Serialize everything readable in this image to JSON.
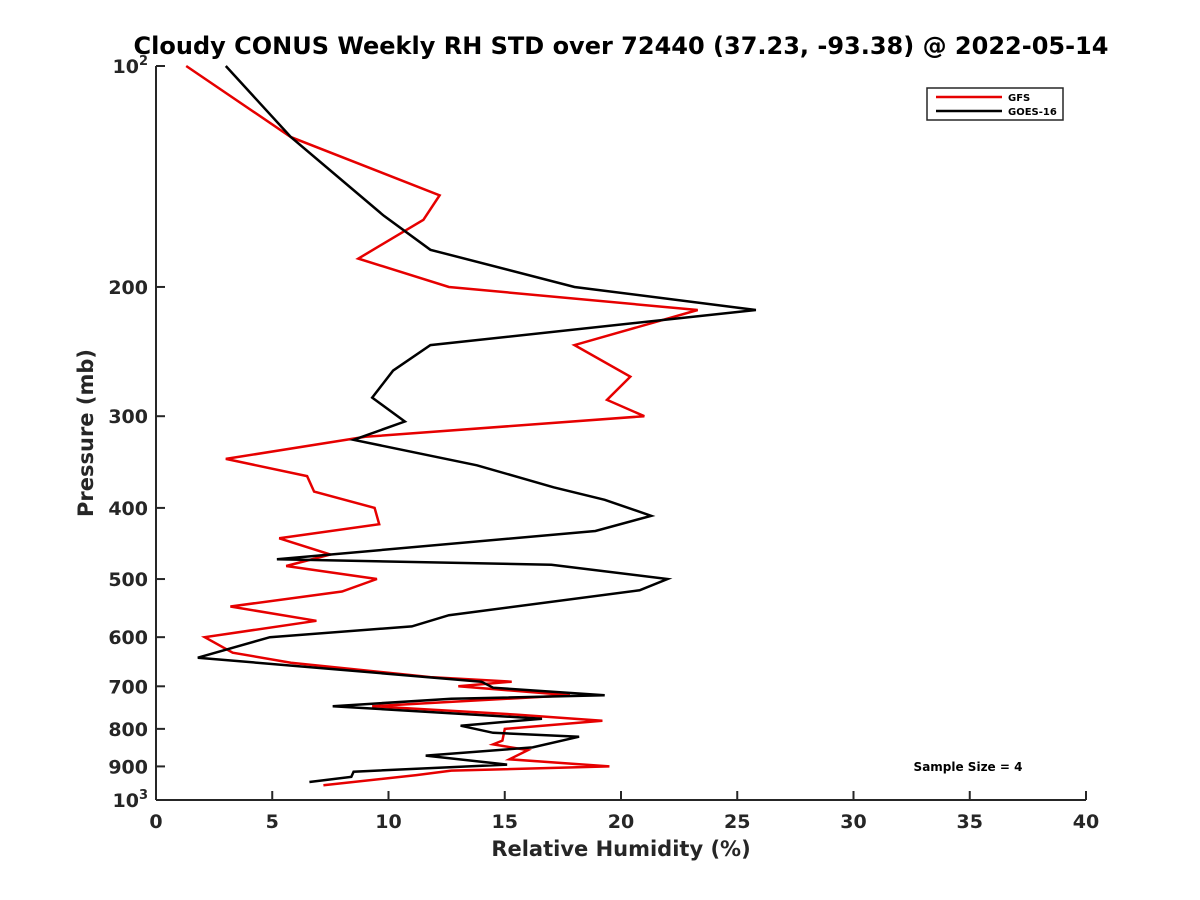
{
  "chart_data": {
    "type": "line",
    "title": "Cloudy CONUS Weekly RH STD over 72440 (37.23, -93.38) @ 2022-05-14",
    "xlabel": "Relative Humidity (%)",
    "ylabel": "Pressure (mb)",
    "xlim": [
      0,
      40
    ],
    "ylim": [
      100,
      1000
    ],
    "y_scale": "log",
    "y_reversed": true,
    "grid": false,
    "legend_position": "top-right",
    "x_ticks": [
      "0",
      "5",
      "10",
      "15",
      "20",
      "25",
      "30",
      "35",
      "40"
    ],
    "y_ticks": [
      {
        "value": 100,
        "base": "10",
        "exp": "2"
      },
      {
        "value": 200,
        "label": "200"
      },
      {
        "value": 300,
        "label": "300"
      },
      {
        "value": 400,
        "label": "400"
      },
      {
        "value": 500,
        "label": "500"
      },
      {
        "value": 600,
        "label": "600"
      },
      {
        "value": 700,
        "label": "700"
      },
      {
        "value": 800,
        "label": "800"
      },
      {
        "value": 900,
        "label": "900"
      },
      {
        "value": 1000,
        "base": "10",
        "exp": "3"
      }
    ],
    "annotation": "Sample Size = 4",
    "series": [
      {
        "name": "GFS",
        "color": "#e60000",
        "points": [
          {
            "p": 100,
            "x": 1.3
          },
          {
            "p": 125,
            "x": 5.8
          },
          {
            "p": 150,
            "x": 12.2
          },
          {
            "p": 162,
            "x": 11.5
          },
          {
            "p": 183,
            "x": 8.7
          },
          {
            "p": 200,
            "x": 12.6
          },
          {
            "p": 215,
            "x": 23.3
          },
          {
            "p": 240,
            "x": 18.0
          },
          {
            "p": 265,
            "x": 20.4
          },
          {
            "p": 285,
            "x": 19.4
          },
          {
            "p": 300,
            "x": 21.0
          },
          {
            "p": 320,
            "x": 9.0
          },
          {
            "p": 343,
            "x": 3.0
          },
          {
            "p": 362,
            "x": 6.5
          },
          {
            "p": 380,
            "x": 6.8
          },
          {
            "p": 400,
            "x": 9.4
          },
          {
            "p": 421,
            "x": 9.6
          },
          {
            "p": 440,
            "x": 5.3
          },
          {
            "p": 463,
            "x": 7.5
          },
          {
            "p": 480,
            "x": 5.6
          },
          {
            "p": 500,
            "x": 9.5
          },
          {
            "p": 520,
            "x": 8.0
          },
          {
            "p": 545,
            "x": 3.2
          },
          {
            "p": 570,
            "x": 6.9
          },
          {
            "p": 600,
            "x": 2.1
          },
          {
            "p": 630,
            "x": 3.3
          },
          {
            "p": 650,
            "x": 5.8
          },
          {
            "p": 680,
            "x": 11.8
          },
          {
            "p": 690,
            "x": 15.3
          },
          {
            "p": 700,
            "x": 13.0
          },
          {
            "p": 720,
            "x": 17.8
          },
          {
            "p": 745,
            "x": 9.3
          },
          {
            "p": 765,
            "x": 15.5
          },
          {
            "p": 780,
            "x": 19.2
          },
          {
            "p": 800,
            "x": 15.0
          },
          {
            "p": 830,
            "x": 14.9
          },
          {
            "p": 840,
            "x": 14.5
          },
          {
            "p": 855,
            "x": 16.0
          },
          {
            "p": 880,
            "x": 15.2
          },
          {
            "p": 900,
            "x": 19.5
          },
          {
            "p": 912,
            "x": 12.7
          },
          {
            "p": 925,
            "x": 11.2
          },
          {
            "p": 955,
            "x": 7.2
          }
        ]
      },
      {
        "name": "GOES-16",
        "color": "#000000",
        "points": [
          {
            "p": 100,
            "x": 3.0
          },
          {
            "p": 125,
            "x": 5.8
          },
          {
            "p": 160,
            "x": 9.8
          },
          {
            "p": 178,
            "x": 11.8
          },
          {
            "p": 200,
            "x": 18.0
          },
          {
            "p": 215,
            "x": 25.8
          },
          {
            "p": 240,
            "x": 11.8
          },
          {
            "p": 260,
            "x": 10.2
          },
          {
            "p": 283,
            "x": 9.3
          },
          {
            "p": 305,
            "x": 10.7
          },
          {
            "p": 323,
            "x": 8.5
          },
          {
            "p": 350,
            "x": 13.8
          },
          {
            "p": 375,
            "x": 17.1
          },
          {
            "p": 390,
            "x": 19.3
          },
          {
            "p": 410,
            "x": 21.3
          },
          {
            "p": 430,
            "x": 18.9
          },
          {
            "p": 470,
            "x": 5.2
          },
          {
            "p": 478,
            "x": 17.0
          },
          {
            "p": 500,
            "x": 22.0
          },
          {
            "p": 518,
            "x": 20.8
          },
          {
            "p": 560,
            "x": 12.6
          },
          {
            "p": 580,
            "x": 11.0
          },
          {
            "p": 600,
            "x": 4.9
          },
          {
            "p": 640,
            "x": 1.8
          },
          {
            "p": 690,
            "x": 14.0
          },
          {
            "p": 703,
            "x": 14.5
          },
          {
            "p": 720,
            "x": 19.3
          },
          {
            "p": 728,
            "x": 12.7
          },
          {
            "p": 745,
            "x": 7.6
          },
          {
            "p": 775,
            "x": 16.6
          },
          {
            "p": 792,
            "x": 13.1
          },
          {
            "p": 810,
            "x": 14.5
          },
          {
            "p": 820,
            "x": 18.2
          },
          {
            "p": 848,
            "x": 16.2
          },
          {
            "p": 870,
            "x": 11.6
          },
          {
            "p": 895,
            "x": 15.1
          },
          {
            "p": 915,
            "x": 8.5
          },
          {
            "p": 930,
            "x": 8.4
          },
          {
            "p": 945,
            "x": 6.6
          }
        ]
      }
    ]
  }
}
